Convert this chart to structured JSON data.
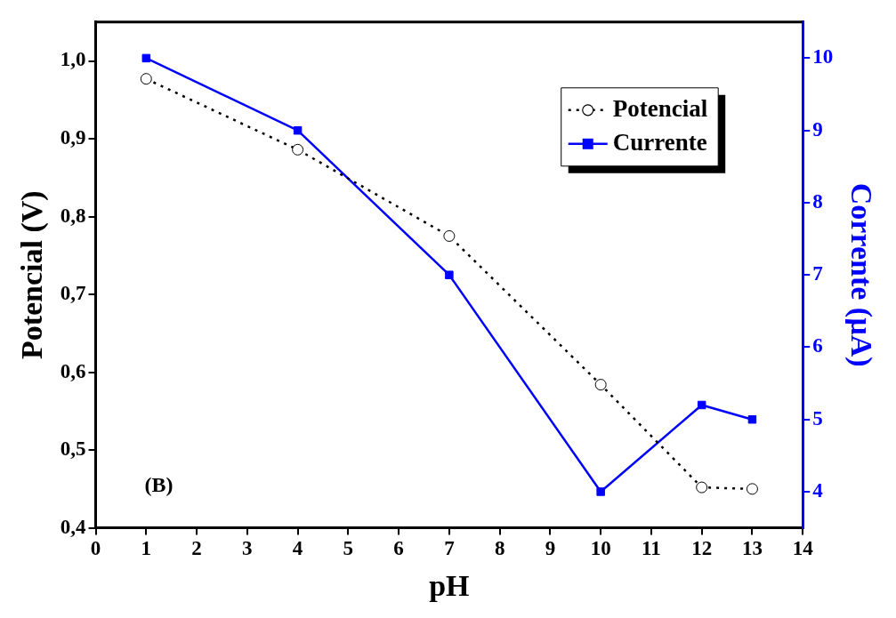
{
  "chart_data": {
    "type": "line",
    "xlabel": "pH",
    "ylabel": "Potencial (V)",
    "y2label": "Corrente (µA)",
    "annotations": [
      "(B)"
    ],
    "xlim": [
      0,
      14
    ],
    "xticks": [
      0,
      1,
      2,
      3,
      4,
      5,
      6,
      7,
      8,
      9,
      10,
      11,
      12,
      13,
      14
    ],
    "ylim": [
      0.4,
      1.05
    ],
    "yticks": [
      {
        "value": 0.4,
        "label": "0,4"
      },
      {
        "value": 0.5,
        "label": "0,5"
      },
      {
        "value": 0.6,
        "label": "0,6"
      },
      {
        "value": 0.7,
        "label": "0,7"
      },
      {
        "value": 0.8,
        "label": "0,8"
      },
      {
        "value": 0.9,
        "label": "0,9"
      },
      {
        "value": 1.0,
        "label": "1,0"
      }
    ],
    "y2lim": [
      3.5,
      10.5
    ],
    "y2ticks": [
      4,
      5,
      6,
      7,
      8,
      9,
      10
    ],
    "x": [
      1,
      4,
      7,
      10,
      12,
      13
    ],
    "series": [
      {
        "name": "Potencial",
        "color": "#000000",
        "values": [
          0.977,
          0.886,
          0.775,
          0.584,
          0.452,
          0.45
        ],
        "marker": "circle",
        "line_style": "dotted"
      },
      {
        "name": "Currente",
        "color": "#0000ff",
        "values": [
          10,
          9,
          7,
          4,
          5.2,
          5.0
        ],
        "marker": "square",
        "line_style": "solid",
        "axis": "y2"
      }
    ],
    "legend": "top right",
    "grid": false
  }
}
